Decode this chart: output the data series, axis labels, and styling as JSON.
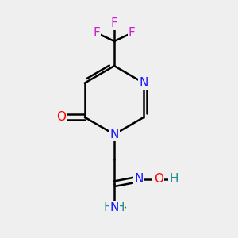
{
  "background_color": "#efefef",
  "atom_colors": {
    "C": "#000000",
    "N": "#1919ff",
    "O": "#ff0000",
    "F": "#cc22cc",
    "H": "#1a9090"
  },
  "bond_color": "#000000",
  "bond_width": 1.8,
  "figsize": [
    3.0,
    3.0
  ],
  "dpi": 100,
  "xlim": [
    0,
    10
  ],
  "ylim": [
    0,
    10
  ]
}
